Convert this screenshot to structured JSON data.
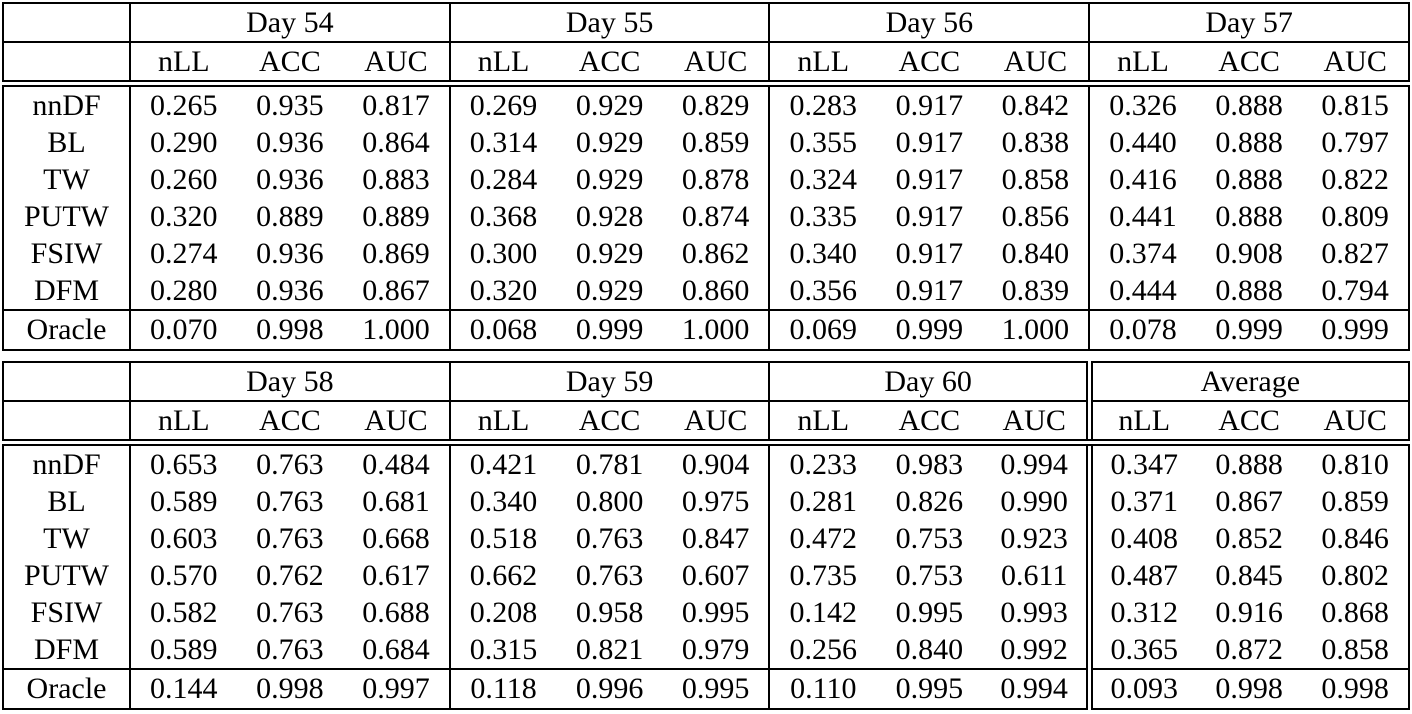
{
  "page": {
    "background_color": "#ffffff",
    "rule_color": "#000000",
    "text_color": "#000000"
  },
  "tables": [
    {
      "name": "results-days-54-57",
      "column_groups": [
        "Day 54",
        "Day 55",
        "Day 56",
        "Day 57"
      ],
      "metrics": [
        "nLL",
        "ACC",
        "AUC"
      ],
      "double_rule_before_last_group": false,
      "rows": [
        {
          "label": "nnDF",
          "values": [
            "0.265",
            "0.935",
            "0.817",
            "0.269",
            "0.929",
            "0.829",
            "0.283",
            "0.917",
            "0.842",
            "0.326",
            "0.888",
            "0.815"
          ],
          "bold": [
            0,
            0,
            0,
            1,
            1,
            0,
            1,
            1,
            0,
            1,
            0,
            0
          ]
        },
        {
          "label": "BL",
          "values": [
            "0.290",
            "0.936",
            "0.864",
            "0.314",
            "0.929",
            "0.859",
            "0.355",
            "0.917",
            "0.838",
            "0.440",
            "0.888",
            "0.797"
          ],
          "bold": [
            0,
            1,
            0,
            0,
            1,
            0,
            0,
            1,
            0,
            0,
            0,
            0
          ]
        },
        {
          "label": "TW",
          "values": [
            "0.260",
            "0.936",
            "0.883",
            "0.284",
            "0.929",
            "0.878",
            "0.324",
            "0.917",
            "0.858",
            "0.416",
            "0.888",
            "0.822"
          ],
          "bold": [
            1,
            1,
            0,
            0,
            1,
            1,
            0,
            1,
            1,
            0,
            0,
            0
          ]
        },
        {
          "label": "PUTW",
          "values": [
            "0.320",
            "0.889",
            "0.889",
            "0.368",
            "0.928",
            "0.874",
            "0.335",
            "0.917",
            "0.856",
            "0.441",
            "0.888",
            "0.809"
          ],
          "bold": [
            0,
            0,
            1,
            0,
            0,
            0,
            0,
            0,
            0,
            0,
            0,
            0
          ]
        },
        {
          "label": "FSIW",
          "values": [
            "0.274",
            "0.936",
            "0.869",
            "0.300",
            "0.929",
            "0.862",
            "0.340",
            "0.917",
            "0.840",
            "0.374",
            "0.908",
            "0.827"
          ],
          "bold": [
            0,
            1,
            0,
            0,
            1,
            0,
            0,
            1,
            0,
            0,
            1,
            1
          ]
        },
        {
          "label": "DFM",
          "values": [
            "0.280",
            "0.936",
            "0.867",
            "0.320",
            "0.929",
            "0.860",
            "0.356",
            "0.917",
            "0.839",
            "0.444",
            "0.888",
            "0.794"
          ],
          "bold": [
            0,
            1,
            0,
            0,
            1,
            0,
            0,
            1,
            0,
            0,
            0,
            0
          ]
        }
      ],
      "footer_row": {
        "label": "Oracle",
        "values": [
          "0.070",
          "0.998",
          "1.000",
          "0.068",
          "0.999",
          "1.000",
          "0.069",
          "0.999",
          "1.000",
          "0.078",
          "0.999",
          "0.999"
        ],
        "bold": [
          0,
          0,
          0,
          0,
          0,
          0,
          0,
          0,
          0,
          0,
          0,
          0
        ]
      }
    },
    {
      "name": "results-days-58-60-average",
      "column_groups": [
        "Day 58",
        "Day 59",
        "Day 60",
        "Average"
      ],
      "metrics": [
        "nLL",
        "ACC",
        "AUC"
      ],
      "double_rule_before_last_group": true,
      "rows": [
        {
          "label": "nnDF",
          "values": [
            "0.653",
            "0.763",
            "0.484",
            "0.421",
            "0.781",
            "0.904",
            "0.233",
            "0.983",
            "0.994",
            "0.347",
            "0.888",
            "0.810"
          ],
          "bold": [
            0,
            1,
            0,
            0,
            0,
            0,
            0,
            0,
            1,
            0,
            0,
            0
          ]
        },
        {
          "label": "BL",
          "values": [
            "0.589",
            "0.763",
            "0.681",
            "0.340",
            "0.800",
            "0.975",
            "0.281",
            "0.826",
            "0.990",
            "0.371",
            "0.867",
            "0.859"
          ],
          "bold": [
            0,
            1,
            0,
            0,
            0,
            0,
            0,
            0,
            0,
            0,
            0,
            0
          ]
        },
        {
          "label": "TW",
          "values": [
            "0.603",
            "0.763",
            "0.668",
            "0.518",
            "0.763",
            "0.847",
            "0.472",
            "0.753",
            "0.923",
            "0.408",
            "0.852",
            "0.846"
          ],
          "bold": [
            0,
            1,
            0,
            0,
            0,
            0,
            0,
            0,
            0,
            0,
            0,
            0
          ]
        },
        {
          "label": "PUTW",
          "values": [
            "0.570",
            "0.762",
            "0.617",
            "0.662",
            "0.763",
            "0.607",
            "0.735",
            "0.753",
            "0.611",
            "0.487",
            "0.845",
            "0.802"
          ],
          "bold": [
            1,
            0,
            0,
            0,
            0,
            0,
            0,
            0,
            0,
            0,
            0,
            0
          ]
        },
        {
          "label": "FSIW",
          "values": [
            "0.582",
            "0.763",
            "0.688",
            "0.208",
            "0.958",
            "0.995",
            "0.142",
            "0.995",
            "0.993",
            "0.312",
            "0.916",
            "0.868"
          ],
          "bold": [
            0,
            1,
            1,
            1,
            1,
            1,
            1,
            1,
            0,
            1,
            1,
            1
          ]
        },
        {
          "label": "DFM",
          "values": [
            "0.589",
            "0.763",
            "0.684",
            "0.315",
            "0.821",
            "0.979",
            "0.256",
            "0.840",
            "0.992",
            "0.365",
            "0.872",
            "0.858"
          ],
          "bold": [
            0,
            1,
            0,
            0,
            0,
            0,
            0,
            0,
            0,
            0,
            0,
            0
          ]
        }
      ],
      "footer_row": {
        "label": "Oracle",
        "values": [
          "0.144",
          "0.998",
          "0.997",
          "0.118",
          "0.996",
          "0.995",
          "0.110",
          "0.995",
          "0.994",
          "0.093",
          "0.998",
          "0.998"
        ],
        "bold": [
          0,
          0,
          0,
          0,
          0,
          0,
          0,
          0,
          0,
          0,
          0,
          0
        ]
      }
    }
  ]
}
